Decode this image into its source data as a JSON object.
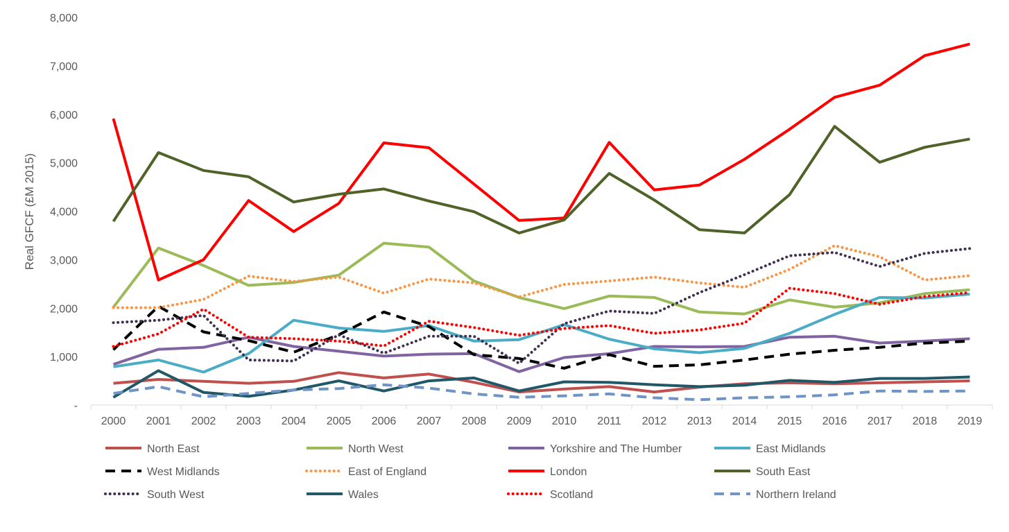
{
  "chart_data": {
    "type": "line",
    "title": "",
    "xlabel": "",
    "ylabel": "Real GFCF (£M 2015)",
    "ylim": [
      0,
      8000
    ],
    "yticks": [
      0,
      1000,
      2000,
      3000,
      4000,
      5000,
      6000,
      7000,
      8000
    ],
    "ytick_labels": [
      "-",
      "1,000",
      "2,000",
      "3,000",
      "4,000",
      "5,000",
      "6,000",
      "7,000",
      "8,000"
    ],
    "categories": [
      "2000",
      "2001",
      "2002",
      "2003",
      "2004",
      "2005",
      "2006",
      "2007",
      "2008",
      "2009",
      "2010",
      "2011",
      "2012",
      "2013",
      "2014",
      "2015",
      "2016",
      "2017",
      "2018",
      "2019"
    ],
    "grid": false,
    "legend_position": "bottom",
    "series": [
      {
        "name": "North East",
        "color": "#C0504D",
        "style": "solid",
        "values": [
          450,
          530,
          490,
          450,
          490,
          670,
          560,
          640,
          470,
          270,
          330,
          380,
          270,
          370,
          440,
          460,
          440,
          460,
          480,
          500
        ]
      },
      {
        "name": "North West",
        "color": "#9BBB59",
        "style": "solid",
        "values": [
          2020,
          3240,
          2880,
          2470,
          2530,
          2680,
          3340,
          3260,
          2560,
          2220,
          1990,
          2250,
          2220,
          1920,
          1880,
          2170,
          2020,
          2110,
          2300,
          2380
        ]
      },
      {
        "name": "Yorkshire and The Humber",
        "color": "#8064A2",
        "style": "solid",
        "values": [
          840,
          1150,
          1190,
          1400,
          1210,
          1110,
          1010,
          1050,
          1060,
          690,
          980,
          1060,
          1210,
          1200,
          1210,
          1400,
          1420,
          1280,
          1320,
          1370
        ]
      },
      {
        "name": "East Midlands",
        "color": "#4BACC6",
        "style": "solid",
        "values": [
          790,
          930,
          680,
          1060,
          1750,
          1590,
          1520,
          1640,
          1320,
          1350,
          1660,
          1360,
          1160,
          1080,
          1170,
          1480,
          1870,
          2220,
          2210,
          2290
        ]
      },
      {
        "name": "West Midlands",
        "color": "#000000",
        "style": "dash",
        "values": [
          1140,
          2040,
          1510,
          1330,
          1090,
          1450,
          1920,
          1620,
          1040,
          960,
          760,
          1040,
          800,
          830,
          930,
          1050,
          1130,
          1190,
          1280,
          1320
        ]
      },
      {
        "name": "East of England",
        "color": "#F79646",
        "style": "dot",
        "values": [
          2010,
          2010,
          2180,
          2660,
          2550,
          2640,
          2310,
          2600,
          2520,
          2230,
          2490,
          2560,
          2640,
          2520,
          2430,
          2800,
          3290,
          3060,
          2580,
          2670
        ]
      },
      {
        "name": "London",
        "color": "#FF0000",
        "style": "solid",
        "values": [
          5910,
          2580,
          3000,
          4220,
          3580,
          4160,
          5410,
          5310,
          4560,
          3810,
          3860,
          5420,
          4440,
          4540,
          5070,
          5690,
          6350,
          6600,
          7210,
          7450
        ]
      },
      {
        "name": "South East",
        "color": "#4F6228",
        "style": "solid",
        "values": [
          3790,
          5210,
          4840,
          4710,
          4190,
          4350,
          4460,
          4210,
          3990,
          3550,
          3820,
          4780,
          4230,
          3620,
          3550,
          4340,
          5750,
          5010,
          5320,
          5490
        ]
      },
      {
        "name": "South West",
        "color": "#403151",
        "style": "dot",
        "values": [
          1700,
          1750,
          1850,
          930,
          910,
          1450,
          1070,
          1420,
          1420,
          860,
          1680,
          1940,
          1890,
          2320,
          2690,
          3080,
          3150,
          2860,
          3130,
          3230
        ]
      },
      {
        "name": "Wales",
        "color": "#215868",
        "style": "solid",
        "values": [
          160,
          710,
          260,
          180,
          310,
          500,
          290,
          500,
          560,
          290,
          480,
          470,
          420,
          380,
          410,
          510,
          470,
          550,
          550,
          580
        ]
      },
      {
        "name": "Scotland",
        "color": "#FF0000",
        "style": "dot",
        "values": [
          1210,
          1470,
          1980,
          1400,
          1370,
          1320,
          1220,
          1730,
          1600,
          1440,
          1580,
          1640,
          1480,
          1550,
          1690,
          2410,
          2300,
          2080,
          2240,
          2320
        ]
      },
      {
        "name": "Northern Ireland",
        "color": "#7094C5",
        "style": "dash",
        "values": [
          240,
          380,
          170,
          240,
          310,
          340,
          420,
          350,
          230,
          160,
          190,
          230,
          150,
          110,
          150,
          170,
          210,
          290,
          280,
          290
        ]
      }
    ]
  }
}
